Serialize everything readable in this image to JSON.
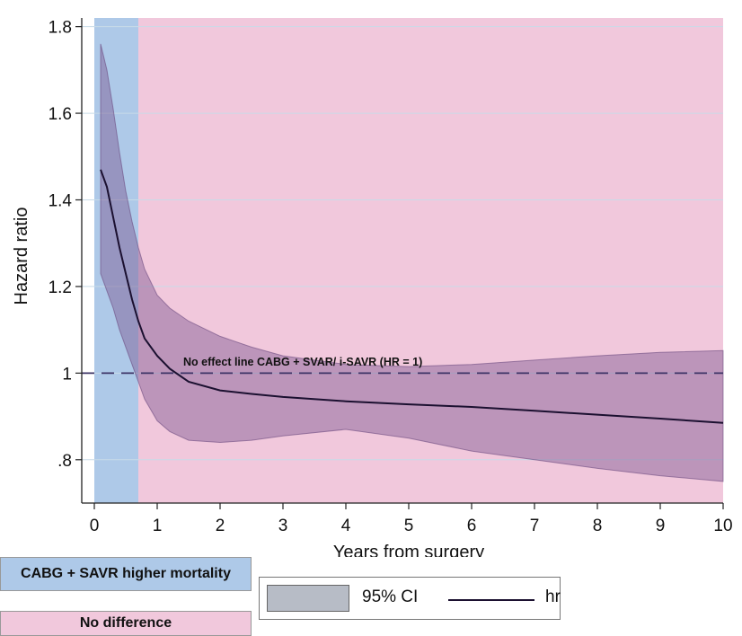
{
  "chart_data": {
    "type": "line",
    "xlabel": "Years from surgery",
    "ylabel": "Hazard ratio",
    "xlim": [
      -0.2,
      10
    ],
    "ylim": [
      0.7,
      1.82
    ],
    "x_ticks": [
      0,
      1,
      2,
      3,
      4,
      5,
      6,
      7,
      8,
      9,
      10
    ],
    "x_tick_labels": [
      "0",
      "1",
      "2",
      "3",
      "4",
      "5",
      "6",
      "7",
      "8",
      "9",
      "10"
    ],
    "y_ticks": [
      0.8,
      1.0,
      1.2,
      1.4,
      1.6,
      1.8
    ],
    "y_tick_labels": [
      ".8",
      "1",
      "1.2",
      "1.4",
      "1.6",
      "1.8"
    ],
    "grid": true,
    "series": [
      {
        "name": "hr",
        "x": [
          0.1,
          0.2,
          0.3,
          0.4,
          0.5,
          0.6,
          0.7,
          0.8,
          1.0,
          1.2,
          1.5,
          2.0,
          2.5,
          3.0,
          4.0,
          5.0,
          6.0,
          7.0,
          8.0,
          9.0,
          10.0
        ],
        "y": [
          1.47,
          1.43,
          1.36,
          1.29,
          1.23,
          1.17,
          1.12,
          1.08,
          1.04,
          1.01,
          0.98,
          0.96,
          0.952,
          0.945,
          0.935,
          0.928,
          0.922,
          0.913,
          0.904,
          0.895,
          0.885
        ]
      },
      {
        "name": "95% CI",
        "x": [
          0.1,
          0.2,
          0.3,
          0.4,
          0.5,
          0.6,
          0.7,
          0.8,
          1.0,
          1.2,
          1.5,
          2.0,
          2.5,
          3.0,
          4.0,
          5.0,
          6.0,
          7.0,
          8.0,
          9.0,
          10.0
        ],
        "upper": [
          1.76,
          1.7,
          1.61,
          1.51,
          1.42,
          1.35,
          1.29,
          1.24,
          1.18,
          1.15,
          1.12,
          1.085,
          1.06,
          1.04,
          1.02,
          1.015,
          1.02,
          1.03,
          1.04,
          1.048,
          1.052
        ],
        "lower": [
          1.23,
          1.19,
          1.15,
          1.1,
          1.06,
          1.02,
          0.98,
          0.94,
          0.89,
          0.865,
          0.845,
          0.84,
          0.845,
          0.855,
          0.87,
          0.85,
          0.82,
          0.8,
          0.78,
          0.763,
          0.75
        ]
      }
    ],
    "reference_line": {
      "y": 1.0,
      "label": "No effect line CABG + SVAR/ i-SAVR  (HR = 1)"
    },
    "regions": [
      {
        "label": "CABG + SAVR  higher mortality",
        "x_start": 0,
        "x_end": 0.7,
        "color": "#aec9e8"
      },
      {
        "label": "No difference",
        "x_start": 0.7,
        "x_end": 10,
        "color": "#f1c8dc"
      }
    ],
    "legend": {
      "position": "bottom",
      "items": [
        {
          "label": "95% CI",
          "kind": "area"
        },
        {
          "label": "hr",
          "kind": "line"
        }
      ]
    },
    "colors": {
      "ci_fill": "#7d5690",
      "hr_line": "#1b1030",
      "legend_swatch": "#b7bcc6",
      "grid": "#c8dbe8"
    }
  }
}
